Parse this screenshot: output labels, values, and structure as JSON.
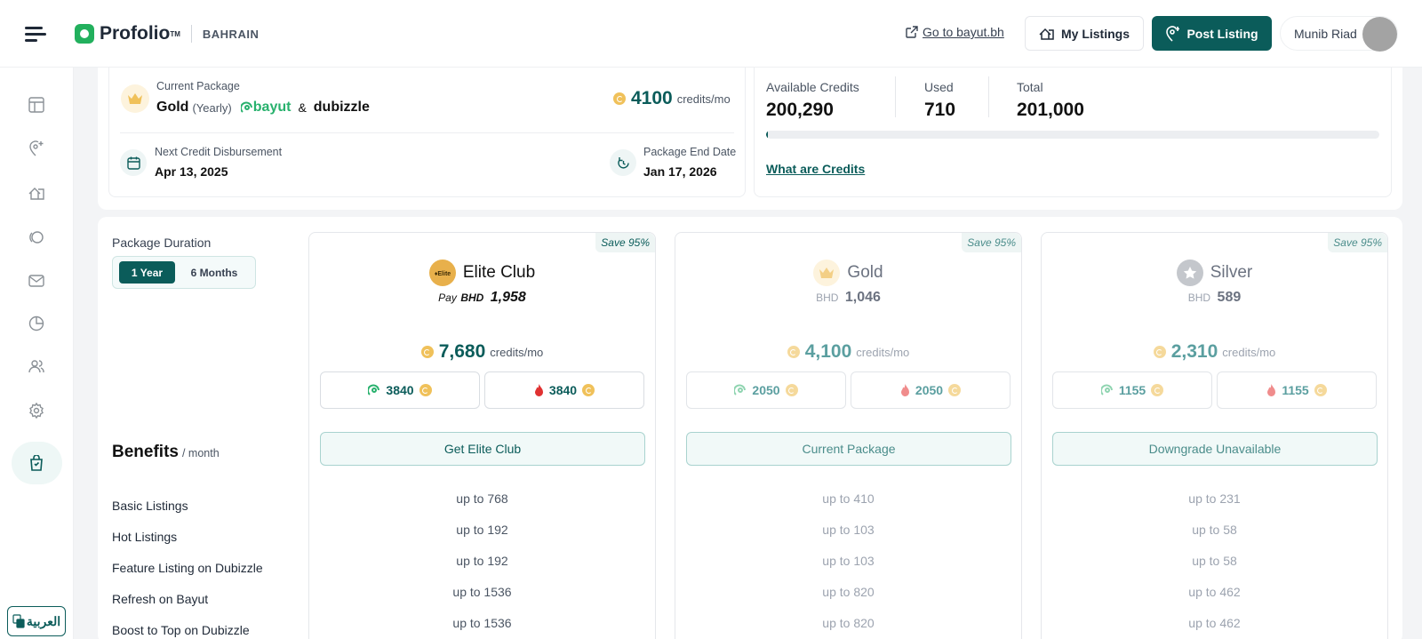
{
  "header": {
    "logo_text": "Profolio",
    "logo_tm": "TM",
    "country": "BAHRAIN",
    "goto_label": "Go to bayut.bh",
    "my_listings_label": "My Listings",
    "post_listing_label": "Post Listing",
    "user_name": "Munib Riad"
  },
  "sidebar": {
    "icons": [
      "dashboard-icon",
      "add-location-icon",
      "listings-icon",
      "leads-icon",
      "mail-icon",
      "analytics-icon",
      "users-icon",
      "settings-icon",
      "package-icon"
    ],
    "language_label": "العربية"
  },
  "package_card": {
    "current_label": "Current Package",
    "name": "Gold",
    "period": "(Yearly)",
    "bayut": "bayut",
    "amp": "&",
    "dubizzle": "dubizzle",
    "credits_value": "4100",
    "credits_unit": "credits/mo",
    "next_disbursement_label": "Next Credit Disbursement",
    "next_disbursement_date": "Apr 13, 2025",
    "end_date_label": "Package End Date",
    "end_date": "Jan 17, 2026"
  },
  "credits_card": {
    "available_label": "Available Credits",
    "available_value": "200,290",
    "used_label": "Used",
    "used_value": "710",
    "total_label": "Total",
    "total_value": "201,000",
    "used_fraction": 0.0035,
    "what_label": "What are Credits"
  },
  "duration": {
    "label": "Package Duration",
    "options": [
      "1 Year",
      "6 Months"
    ],
    "selected": "1 Year"
  },
  "benefits": {
    "title": "Benefits",
    "per": "/ month",
    "rows": [
      "Basic Listings",
      "Hot Listings",
      "Feature Listing on Dubizzle",
      "Refresh on Bayut",
      "Boost to Top on Dubizzle"
    ]
  },
  "plans": [
    {
      "save": "Save 95%",
      "title": "Elite Club",
      "price_prefix": "Pay",
      "currency": "BHD",
      "price": "1,958",
      "credits": "7,680",
      "credits_unit": "credits/mo",
      "bayut_split": "3840",
      "dubizzle_split": "3840",
      "button": "Get Elite Club",
      "rows": [
        "up to 768",
        "up to 192",
        "up to 192",
        "up to 1536",
        "up to 1536"
      ]
    },
    {
      "save": "Save 95%",
      "title": "Gold",
      "price_prefix": "",
      "currency": "BHD",
      "price": "1,046",
      "credits": "4,100",
      "credits_unit": "credits/mo",
      "bayut_split": "2050",
      "dubizzle_split": "2050",
      "button": "Current Package",
      "rows": [
        "up to 410",
        "up to 103",
        "up to 103",
        "up to 820",
        "up to 820"
      ]
    },
    {
      "save": "Save 95%",
      "title": "Silver",
      "price_prefix": "",
      "currency": "BHD",
      "price": "589",
      "credits": "2,310",
      "credits_unit": "credits/mo",
      "bayut_split": "1155",
      "dubizzle_split": "1155",
      "button": "Downgrade Unavailable",
      "rows": [
        "up to 231",
        "up to 58",
        "up to 58",
        "up to 462",
        "up to 462"
      ]
    }
  ],
  "colors": {
    "brand": "#0b5c5a",
    "coin": "#f0c15a",
    "bayut_green": "#28b16d",
    "dubizzle_red": "#e03131"
  }
}
